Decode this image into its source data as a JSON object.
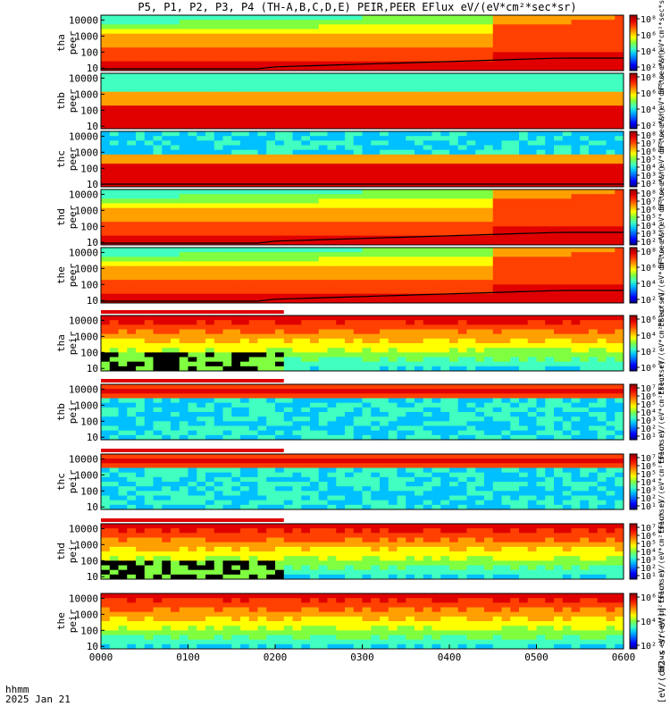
{
  "title": "P5, P1, P2, P3, P4 (TH-A,B,C,D,E) PEIR,PEER EFlux eV/(eV*cm²*sec*sr)",
  "colorbar_unit_label": "[eV/(cm2-s-sr-eV)]",
  "colors": {
    "background": "#ffffff",
    "frame": "#000000",
    "colormap": [
      "#000080",
      "#0000ff",
      "#0060ff",
      "#00c0ff",
      "#40ffc0",
      "#80ff40",
      "#ffff00",
      "#ffa000",
      "#ff4000",
      "#e00000",
      "#900000"
    ]
  },
  "chart_data": {
    "type": "heatmap",
    "x_ticks": [
      "0000",
      "0100",
      "0200",
      "0300",
      "0400",
      "0500",
      "0600"
    ],
    "x_label_line1": "hhmm",
    "x_label_line2": "2025 Jan 21",
    "panels": [
      {
        "label_top": "tha",
        "label_bottom": "peer",
        "y_ticks": [
          "10",
          "100",
          "1000",
          "10000"
        ],
        "colorbar_ticks": [
          "10²",
          "10⁴",
          "10⁶",
          "10⁸"
        ],
        "colorbar_ylabel": "EFlux eV/(eV*cm²*sec*sr)",
        "overlay_line": true,
        "top_strip": false
      },
      {
        "label_top": "thb",
        "label_bottom": "peer",
        "y_ticks": [
          "10",
          "100",
          "1000",
          "10000"
        ],
        "colorbar_ticks": [
          "10²",
          "10⁴",
          "10⁶",
          "10⁸"
        ],
        "colorbar_ylabel": "EFlux eV/(eV*cm²*sec*sr)",
        "overlay_line": false,
        "top_strip": false
      },
      {
        "label_top": "thc",
        "label_bottom": "peer",
        "y_ticks": [
          "10",
          "100",
          "1000",
          "10000"
        ],
        "colorbar_ticks": [
          "10²",
          "10³",
          "10⁴",
          "10⁵",
          "10⁶",
          "10⁷",
          "10⁸"
        ],
        "colorbar_ylabel": "EFlux eV/(eV*cm²*sec*sr)",
        "overlay_line": true,
        "top_strip": false
      },
      {
        "label_top": "thd",
        "label_bottom": "peer",
        "y_ticks": [
          "10",
          "100",
          "1000",
          "10000"
        ],
        "colorbar_ticks": [
          "10²",
          "10³",
          "10⁴",
          "10⁵",
          "10⁶",
          "10⁷",
          "10⁸"
        ],
        "colorbar_ylabel": "EFlux eV/(eV*cm²*sec*sr)",
        "overlay_line": true,
        "top_strip": false
      },
      {
        "label_top": "the",
        "label_bottom": "peer",
        "y_ticks": [
          "10",
          "100",
          "1000",
          "10000"
        ],
        "colorbar_ticks": [
          "10²",
          "10⁴",
          "10⁶",
          "10⁸"
        ],
        "colorbar_ylabel": "EFlux eV/(eV*cm²*sec*sr)",
        "overlay_line": true,
        "top_strip": false
      },
      {
        "label_top": "tha",
        "label_bottom": "peir",
        "y_ticks": [
          "10",
          "100",
          "1000",
          "10000"
        ],
        "colorbar_ticks": [
          "10⁰",
          "10²",
          "10⁴",
          "10⁶"
        ],
        "colorbar_ylabel": "EFlux eV/(eV*cm²*sec*sr)",
        "overlay_line": false,
        "top_strip": true
      },
      {
        "label_top": "thb",
        "label_bottom": "peir",
        "y_ticks": [
          "10",
          "100",
          "1000",
          "10000"
        ],
        "colorbar_ticks": [
          "10¹",
          "10²",
          "10³",
          "10⁴",
          "10⁵",
          "10⁶",
          "10⁷"
        ],
        "colorbar_ylabel": "EFlux eV/(eV*cm²*sec*sr)",
        "overlay_line": false,
        "top_strip": true
      },
      {
        "label_top": "thc",
        "label_bottom": "peir",
        "y_ticks": [
          "10",
          "100",
          "1000",
          "10000"
        ],
        "colorbar_ticks": [
          "10¹",
          "10²",
          "10³",
          "10⁴",
          "10⁵",
          "10⁶",
          "10⁷"
        ],
        "colorbar_ylabel": "EFlux eV/(eV*cm²*sec*sr)",
        "overlay_line": false,
        "top_strip": true
      },
      {
        "label_top": "thd",
        "label_bottom": "peir",
        "y_ticks": [
          "10",
          "100",
          "1000",
          "10000"
        ],
        "colorbar_ticks": [
          "10¹",
          "10²",
          "10³",
          "10⁴",
          "10⁵",
          "10⁶",
          "10⁷"
        ],
        "colorbar_ylabel": "EFlux eV/(eV*cm²*sec*sr)",
        "overlay_line": false,
        "top_strip": true
      },
      {
        "label_top": "the",
        "label_bottom": "peir",
        "y_ticks": [
          "10",
          "100",
          "1000",
          "10000"
        ],
        "colorbar_ticks": [
          "10²",
          "10⁴",
          "10⁶"
        ],
        "colorbar_ylabel": "EFlux eV/(eV*cm²*sec*sr)",
        "overlay_line": false,
        "top_strip": false
      }
    ]
  }
}
